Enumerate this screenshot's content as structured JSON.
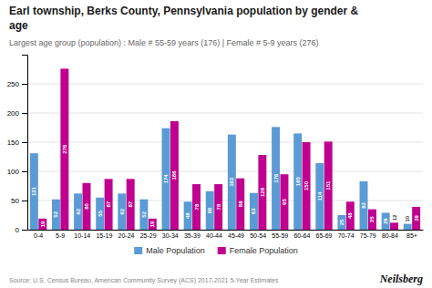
{
  "chart_data": {
    "type": "bar",
    "title": "Earl township, Berks County, Pennsylvania population by gender &\nage",
    "subtitle": "Largest age group (population) : Male # 55-59 years (176) | Female # 5-9 years (276)",
    "annotations": [
      "Source: U.S. Census Bureau, American Community Survey (ACS) 2017-2021 5-Year Estimates",
      "Neilsberg"
    ],
    "categories": [
      "0-4",
      "5-9",
      "10-14",
      "15-19",
      "20-24",
      "25-29",
      "30-34",
      "35-39",
      "40-44",
      "45-49",
      "50-54",
      "55-59",
      "60-64",
      "65-69",
      "70-74",
      "75-79",
      "80-84",
      "85+"
    ],
    "series": [
      {
        "name": "Male Population",
        "color": "#5b9bd5",
        "values": [
          131,
          52,
          62,
          55,
          62,
          52,
          174,
          48,
          66,
          163,
          63,
          176,
          165,
          114,
          25,
          83,
          29,
          10
        ]
      },
      {
        "name": "Female Population",
        "color": "#c0008f",
        "values": [
          19,
          276,
          80,
          87,
          87,
          19,
          186,
          78,
          78,
          88,
          128,
          95,
          150,
          151,
          48,
          35,
          12,
          39
        ]
      }
    ],
    "ylim": [
      0,
      300
    ],
    "yticks": [
      0,
      50,
      100,
      150,
      200,
      250
    ],
    "grid": true,
    "legend": "bottom",
    "data_labels": true
  }
}
